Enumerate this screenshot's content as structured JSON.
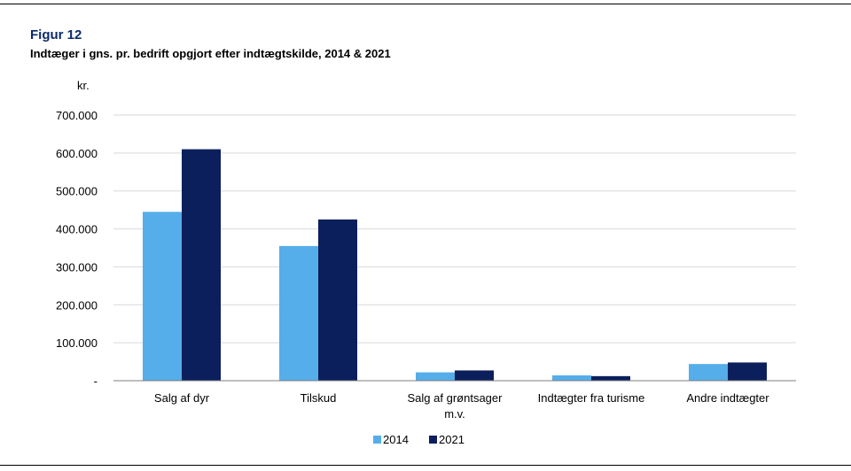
{
  "figure_label": "Figur 12",
  "chart_data": {
    "type": "bar",
    "title": "Indtæger i gns. pr. bedrift opgjort efter indtægtskilde, 2014 & 2021",
    "ylabel": "kr.",
    "xlabel": "",
    "categories": [
      [
        "Salg af dyr"
      ],
      [
        "Tilskud"
      ],
      [
        "Salg af grøntsager",
        "m.v."
      ],
      [
        "Indtægter fra turisme"
      ],
      [
        "Andre indtægter"
      ]
    ],
    "series": [
      {
        "name": "2014",
        "color": "#55aeea",
        "values": [
          445000,
          355000,
          22000,
          14000,
          44000
        ]
      },
      {
        "name": "2021",
        "color": "#0b1f5c",
        "values": [
          610000,
          425000,
          27000,
          12000,
          48000
        ]
      }
    ],
    "ylim": [
      0,
      700000
    ],
    "yticks": [
      0,
      100000,
      200000,
      300000,
      400000,
      500000,
      600000,
      700000
    ],
    "ytick_labels": [
      "-",
      "100.000",
      "200.000",
      "300.000",
      "400.000",
      "500.000",
      "600.000",
      "700.000"
    ],
    "grid": true,
    "legend_position": "bottom"
  }
}
